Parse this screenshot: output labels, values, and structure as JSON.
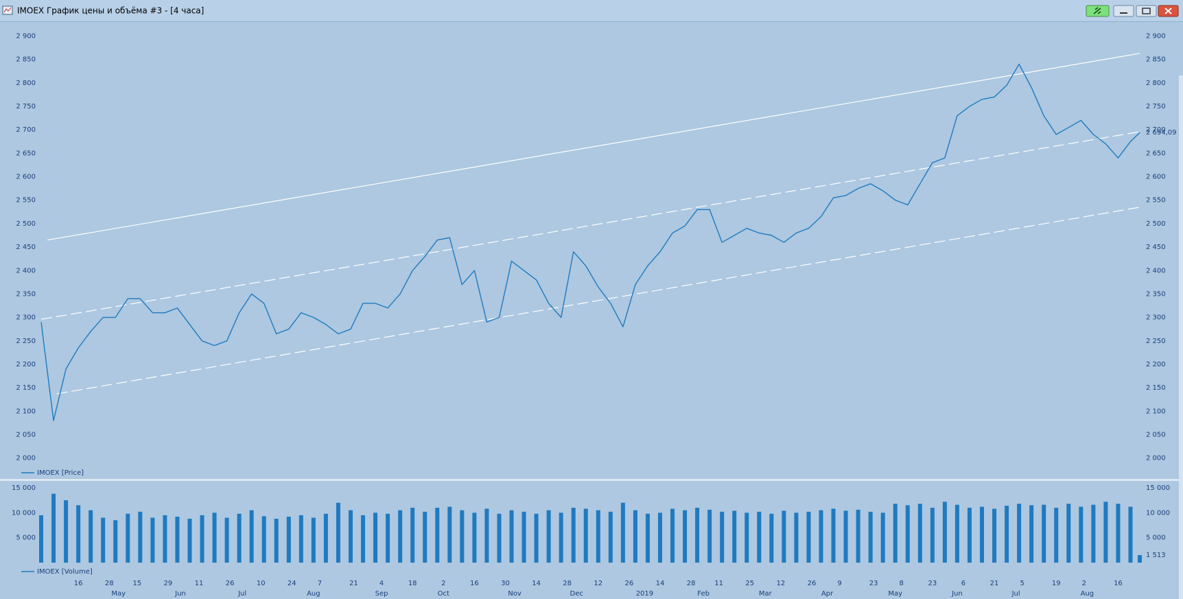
{
  "window": {
    "title": "IMOEX График цены и объёма #3 - [4 часа]"
  },
  "chart_data": [
    {
      "type": "line",
      "xlim": [
        0,
        355
      ],
      "ylim": [
        1960,
        2930
      ],
      "yticks": [
        {
          "value": 2000,
          "label": "2 000"
        },
        {
          "value": 2050,
          "label": "2 050"
        },
        {
          "value": 2100,
          "label": "2 100"
        },
        {
          "value": 2150,
          "label": "2 150"
        },
        {
          "value": 2200,
          "label": "2 200"
        },
        {
          "value": 2250,
          "label": "2 250"
        },
        {
          "value": 2300,
          "label": "2 300"
        },
        {
          "value": 2350,
          "label": "2 350"
        },
        {
          "value": 2400,
          "label": "2 400"
        },
        {
          "value": 2450,
          "label": "2 450"
        },
        {
          "value": 2500,
          "label": "2 500"
        },
        {
          "value": 2550,
          "label": "2 550"
        },
        {
          "value": 2600,
          "label": "2 600"
        },
        {
          "value": 2650,
          "label": "2 650"
        },
        {
          "value": 2700,
          "label": "2 700"
        },
        {
          "value": 2750,
          "label": "2 750"
        },
        {
          "value": 2800,
          "label": "2 800"
        },
        {
          "value": 2850,
          "label": "2 850"
        },
        {
          "value": 2900,
          "label": "2 900"
        }
      ],
      "x": [
        0,
        4,
        8,
        12,
        16,
        20,
        24,
        28,
        32,
        36,
        40,
        44,
        48,
        52,
        56,
        60,
        64,
        68,
        72,
        76,
        80,
        84,
        88,
        92,
        96,
        100,
        104,
        108,
        112,
        116,
        120,
        124,
        128,
        132,
        136,
        140,
        144,
        148,
        152,
        156,
        160,
        164,
        168,
        172,
        176,
        180,
        184,
        188,
        192,
        196,
        200,
        204,
        208,
        212,
        216,
        220,
        224,
        228,
        232,
        236,
        240,
        244,
        248,
        252,
        256,
        260,
        264,
        268,
        272,
        276,
        280,
        284,
        288,
        292,
        296,
        300,
        304,
        308,
        312,
        316,
        320,
        324,
        328,
        332,
        336,
        340,
        344,
        348,
        352,
        355
      ],
      "series": [
        {
          "name": "IMOEX [Price]",
          "color": "#1f7ac0",
          "values": [
            2290,
            2080,
            2190,
            2235,
            2270,
            2300,
            2300,
            2340,
            2340,
            2310,
            2310,
            2320,
            2285,
            2250,
            2240,
            2250,
            2310,
            2350,
            2330,
            2265,
            2275,
            2310,
            2300,
            2285,
            2265,
            2275,
            2330,
            2330,
            2320,
            2350,
            2400,
            2430,
            2465,
            2470,
            2370,
            2400,
            2290,
            2300,
            2420,
            2400,
            2380,
            2330,
            2300,
            2440,
            2410,
            2365,
            2330,
            2280,
            2370,
            2410,
            2440,
            2480,
            2495,
            2530,
            2530,
            2460,
            2475,
            2490,
            2480,
            2475,
            2460,
            2480,
            2490,
            2515,
            2555,
            2560,
            2575,
            2585,
            2570,
            2550,
            2540,
            2585,
            2630,
            2640,
            2730,
            2750,
            2765,
            2770,
            2795,
            2840,
            2790,
            2730,
            2690,
            2705,
            2720,
            2690,
            2670,
            2640,
            2675,
            2694.09
          ]
        }
      ],
      "last_label": {
        "value": 2694.09,
        "label": "2 694,09"
      },
      "lines": [
        {
          "style": "solid",
          "color": "#ffffff",
          "x": [
            2,
            355
          ],
          "values": [
            2465,
            2863
          ]
        },
        {
          "style": "dashed",
          "color": "#ffffff",
          "x": [
            0,
            355
          ],
          "values": [
            2296,
            2696
          ]
        },
        {
          "style": "dashed",
          "color": "#ffffff",
          "x": [
            5,
            355
          ],
          "values": [
            2137,
            2535
          ]
        }
      ]
    },
    {
      "type": "bar",
      "xlim": [
        0,
        355
      ],
      "ylim": [
        0,
        16500
      ],
      "yticks": [
        {
          "value": 5000,
          "label": "5 000"
        },
        {
          "value": 10000,
          "label": "10 000"
        },
        {
          "value": 15000,
          "label": "15 000"
        }
      ],
      "x": [
        0,
        4,
        8,
        12,
        16,
        20,
        24,
        28,
        32,
        36,
        40,
        44,
        48,
        52,
        56,
        60,
        64,
        68,
        72,
        76,
        80,
        84,
        88,
        92,
        96,
        100,
        104,
        108,
        112,
        116,
        120,
        124,
        128,
        132,
        136,
        140,
        144,
        148,
        152,
        156,
        160,
        164,
        168,
        172,
        176,
        180,
        184,
        188,
        192,
        196,
        200,
        204,
        208,
        212,
        216,
        220,
        224,
        228,
        232,
        236,
        240,
        244,
        248,
        252,
        256,
        260,
        264,
        268,
        272,
        276,
        280,
        284,
        288,
        292,
        296,
        300,
        304,
        308,
        312,
        316,
        320,
        324,
        328,
        332,
        336,
        340,
        344,
        348,
        352,
        355
      ],
      "series": [
        {
          "name": "IMOEX [Volume]",
          "color": "#1f7ac0",
          "values": [
            9500,
            13800,
            12500,
            11500,
            10500,
            9000,
            8500,
            9800,
            10200,
            9000,
            9500,
            9200,
            8800,
            9500,
            10000,
            9000,
            9800,
            10500,
            9300,
            8800,
            9200,
            9500,
            9000,
            9800,
            12000,
            10500,
            9500,
            10000,
            9800,
            10500,
            11000,
            10200,
            11000,
            11200,
            10500,
            10000,
            10800,
            9800,
            10500,
            10200,
            9800,
            10500,
            10000,
            11000,
            10800,
            10500,
            10200,
            12000,
            10500,
            9800,
            10000,
            10800,
            10500,
            11000,
            10600,
            10200,
            10400,
            10000,
            10200,
            9800,
            10400,
            10000,
            10200,
            10500,
            10800,
            10400,
            10600,
            10200,
            10000,
            11800,
            11500,
            11800,
            11000,
            12200,
            11600,
            11000,
            11200,
            10800,
            11400,
            11800,
            11500,
            11600,
            11000,
            11800,
            11200,
            11600,
            12200,
            11800,
            11200,
            1513
          ]
        }
      ],
      "last_label": {
        "value": 1513,
        "label": "1 513"
      },
      "xticks": [
        {
          "value": 12,
          "label": "16"
        },
        {
          "value": 22,
          "label": "28"
        },
        {
          "value": 31,
          "label": "15"
        },
        {
          "value": 41,
          "label": "29"
        },
        {
          "value": 51,
          "label": "11"
        },
        {
          "value": 61,
          "label": "26"
        },
        {
          "value": 71,
          "label": "10"
        },
        {
          "value": 81,
          "label": "24"
        },
        {
          "value": 90,
          "label": "7"
        },
        {
          "value": 101,
          "label": "21"
        },
        {
          "value": 110,
          "label": "4"
        },
        {
          "value": 120,
          "label": "18"
        },
        {
          "value": 130,
          "label": "2"
        },
        {
          "value": 140,
          "label": "16"
        },
        {
          "value": 150,
          "label": "30"
        },
        {
          "value": 160,
          "label": "14"
        },
        {
          "value": 170,
          "label": "28"
        },
        {
          "value": 180,
          "label": "12"
        },
        {
          "value": 190,
          "label": "26"
        },
        {
          "value": 200,
          "label": "14"
        },
        {
          "value": 210,
          "label": "28"
        },
        {
          "value": 219,
          "label": "11"
        },
        {
          "value": 229,
          "label": "25"
        },
        {
          "value": 239,
          "label": "12"
        },
        {
          "value": 249,
          "label": "26"
        },
        {
          "value": 258,
          "label": "9"
        },
        {
          "value": 269,
          "label": "23"
        },
        {
          "value": 278,
          "label": "8"
        },
        {
          "value": 288,
          "label": "23"
        },
        {
          "value": 298,
          "label": "6"
        },
        {
          "value": 308,
          "label": "21"
        },
        {
          "value": 317,
          "label": "5"
        },
        {
          "value": 328,
          "label": "19"
        },
        {
          "value": 337,
          "label": "2"
        },
        {
          "value": 348,
          "label": "16"
        }
      ],
      "xticks_months": [
        {
          "value": 25,
          "label": "May"
        },
        {
          "value": 45,
          "label": "Jun"
        },
        {
          "value": 65,
          "label": "Jul"
        },
        {
          "value": 88,
          "label": "Aug"
        },
        {
          "value": 110,
          "label": "Sep"
        },
        {
          "value": 130,
          "label": "Oct"
        },
        {
          "value": 153,
          "label": "Nov"
        },
        {
          "value": 173,
          "label": "Dec"
        },
        {
          "value": 195,
          "label": "2019"
        },
        {
          "value": 214,
          "label": "Feb"
        },
        {
          "value": 234,
          "label": "Mar"
        },
        {
          "value": 254,
          "label": "Apr"
        },
        {
          "value": 276,
          "label": "May"
        },
        {
          "value": 296,
          "label": "Jun"
        },
        {
          "value": 315,
          "label": "Jul"
        },
        {
          "value": 338,
          "label": "Aug"
        }
      ]
    }
  ]
}
